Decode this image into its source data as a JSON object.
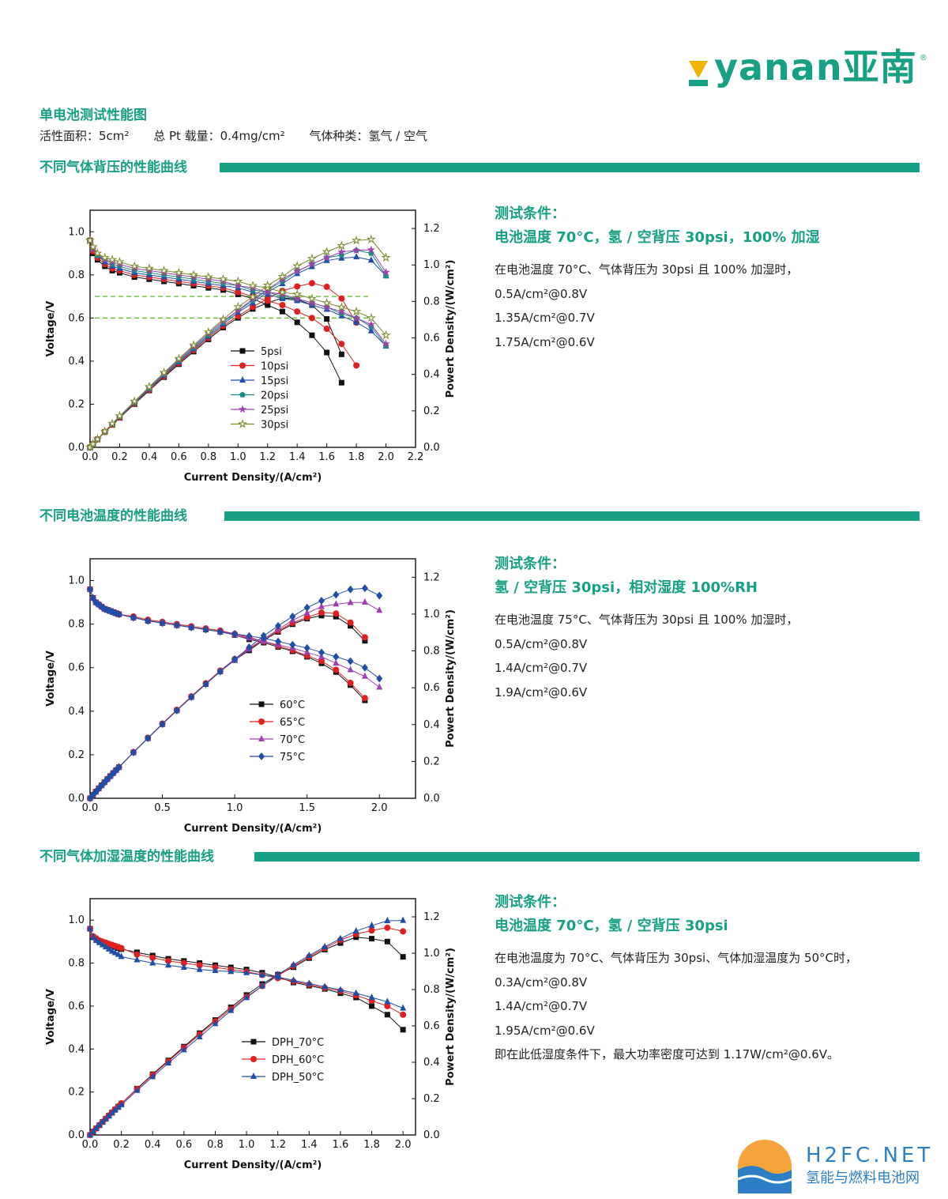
{
  "brand": {
    "logo_text": "yanan亚南",
    "reg": "®",
    "colors": {
      "accent": "#17a083"
    }
  },
  "doc": {
    "title": "单电池测试性能图",
    "specs": [
      "活性面积：5cm²",
      "总 Pt 载量：0.4mg/cm²",
      "气体种类：氢气 / 空气"
    ]
  },
  "sections": [
    {
      "heading": "不同气体背压的性能曲线",
      "cond_title": "测试条件：",
      "cond_sub": "电池温度 70°C，氢 / 空背压 30psi，100% 加湿",
      "lines": [
        "在电池温度 70°C、气体背压为 30psi 且 100% 加湿时，",
        "0.5A/cm²@0.8V",
        "1.35A/cm²@0.7V",
        "1.75A/cm²@0.6V"
      ]
    },
    {
      "heading": "不同电池温度的性能曲线",
      "cond_title": "测试条件：",
      "cond_sub": "氢 / 空背压 30psi，相对湿度 100%RH",
      "lines": [
        "在电池温度 75°C、气体背压为 30psi 且 100% 加湿时，",
        "0.5A/cm²@0.8V",
        "1.4A/cm²@0.7V",
        "1.9A/cm²@0.6V"
      ]
    },
    {
      "heading": "不同气体加湿温度的性能曲线",
      "cond_title": "测试条件：",
      "cond_sub": "电池温度 70°C，氢 / 空背压 30psi",
      "lines": [
        "在电池温度为 70°C、气体背压为 30psi、气体加湿温度为 50°C时，",
        "0.3A/cm²@0.8V",
        "1.4A/cm²@0.7V",
        "1.95A/cm²@0.6V",
        "即在此低湿度条件下，最大功率密度可达到 1.17W/cm²@0.6V。"
      ]
    }
  ],
  "watermark": {
    "name": "H2FC.NET",
    "sub": "氢能与燃料电池网"
  },
  "chart_data": [
    {
      "type": "line",
      "xlabel": "Current Density/(A/cm²)",
      "ylabel": "Voltage/V",
      "y2label": "Powert Density/(W/cm²)",
      "xlim": [
        0,
        2.2
      ],
      "ylim": [
        0,
        1.1
      ],
      "y2lim": [
        0,
        1.3
      ],
      "xticks": [
        "0.0",
        "0.2",
        "0.4",
        "0.6",
        "0.8",
        "1.0",
        "1.2",
        "1.4",
        "1.6",
        "1.8",
        "2.0",
        "2.2"
      ],
      "yticks": [
        "0.0",
        "0.2",
        "0.4",
        "0.6",
        "0.8",
        "1.0"
      ],
      "y2ticks": [
        "0.0",
        "0.2",
        "0.4",
        "0.6",
        "0.8",
        "1.0",
        "1.2"
      ],
      "xtick_values": [
        0,
        0.2,
        0.4,
        0.6,
        0.8,
        1.0,
        1.2,
        1.4,
        1.6,
        1.8,
        2.0,
        2.2
      ],
      "ytick_values": [
        0,
        0.2,
        0.4,
        0.6,
        0.8,
        1.0
      ],
      "y2tick_values": [
        0,
        0.2,
        0.4,
        0.6,
        0.8,
        1.0,
        1.2
      ],
      "hlines": [
        0.7,
        0.6
      ],
      "series": [
        {
          "name": "5psi",
          "color": "#111111",
          "marker": "square",
          "x": [
            0,
            0.02,
            0.05,
            0.1,
            0.15,
            0.2,
            0.3,
            0.4,
            0.5,
            0.6,
            0.7,
            0.8,
            0.9,
            1.0,
            1.1,
            1.2,
            1.3,
            1.4,
            1.5,
            1.6,
            1.7
          ],
          "v": [
            0.96,
            0.9,
            0.87,
            0.84,
            0.82,
            0.81,
            0.79,
            0.78,
            0.77,
            0.76,
            0.75,
            0.74,
            0.73,
            0.71,
            0.69,
            0.66,
            0.63,
            0.58,
            0.52,
            0.44,
            0.3
          ]
        },
        {
          "name": "10psi",
          "color": "#e02020",
          "marker": "circle",
          "x": [
            0,
            0.02,
            0.05,
            0.1,
            0.15,
            0.2,
            0.3,
            0.4,
            0.5,
            0.6,
            0.7,
            0.8,
            0.9,
            1.0,
            1.1,
            1.2,
            1.3,
            1.4,
            1.5,
            1.6,
            1.7,
            1.8
          ],
          "v": [
            0.96,
            0.91,
            0.88,
            0.85,
            0.83,
            0.82,
            0.8,
            0.79,
            0.78,
            0.77,
            0.76,
            0.75,
            0.74,
            0.72,
            0.7,
            0.68,
            0.66,
            0.63,
            0.6,
            0.55,
            0.48,
            0.38
          ]
        },
        {
          "name": "15psi",
          "color": "#1f4ea8",
          "marker": "triangle",
          "x": [
            0,
            0.02,
            0.05,
            0.1,
            0.15,
            0.2,
            0.3,
            0.4,
            0.5,
            0.6,
            0.7,
            0.8,
            0.9,
            1.0,
            1.1,
            1.2,
            1.3,
            1.4,
            1.5,
            1.6,
            1.7,
            1.8,
            1.9,
            2.0
          ],
          "v": [
            0.96,
            0.92,
            0.89,
            0.86,
            0.84,
            0.83,
            0.81,
            0.8,
            0.79,
            0.78,
            0.77,
            0.76,
            0.75,
            0.74,
            0.72,
            0.71,
            0.69,
            0.68,
            0.66,
            0.64,
            0.61,
            0.58,
            0.54,
            0.47
          ]
        },
        {
          "name": "20psi",
          "color": "#1a8a86",
          "marker": "pentagon",
          "x": [
            0,
            0.02,
            0.05,
            0.1,
            0.15,
            0.2,
            0.3,
            0.4,
            0.5,
            0.6,
            0.7,
            0.8,
            0.9,
            1.0,
            1.1,
            1.2,
            1.3,
            1.4,
            1.5,
            1.6,
            1.7,
            1.8,
            1.9,
            2.0
          ],
          "v": [
            0.96,
            0.92,
            0.89,
            0.87,
            0.85,
            0.84,
            0.82,
            0.81,
            0.8,
            0.79,
            0.78,
            0.77,
            0.76,
            0.75,
            0.73,
            0.72,
            0.7,
            0.69,
            0.67,
            0.65,
            0.62,
            0.6,
            0.56,
            0.47
          ]
        },
        {
          "name": "25psi",
          "color": "#a040b0",
          "marker": "star",
          "x": [
            0,
            0.02,
            0.05,
            0.1,
            0.15,
            0.2,
            0.3,
            0.4,
            0.5,
            0.6,
            0.7,
            0.8,
            0.9,
            1.0,
            1.1,
            1.2,
            1.3,
            1.4,
            1.5,
            1.6,
            1.7,
            1.8,
            1.9,
            2.0
          ],
          "v": [
            0.96,
            0.92,
            0.9,
            0.87,
            0.86,
            0.85,
            0.83,
            0.82,
            0.81,
            0.8,
            0.79,
            0.78,
            0.77,
            0.75,
            0.74,
            0.72,
            0.71,
            0.69,
            0.67,
            0.65,
            0.63,
            0.6,
            0.57,
            0.48
          ]
        },
        {
          "name": "30psi",
          "color": "#7a8a2a",
          "marker": "star-open",
          "x": [
            0,
            0.02,
            0.05,
            0.1,
            0.15,
            0.2,
            0.3,
            0.4,
            0.5,
            0.6,
            0.7,
            0.8,
            0.9,
            1.0,
            1.1,
            1.2,
            1.3,
            1.4,
            1.5,
            1.6,
            1.7,
            1.8,
            1.9,
            2.0
          ],
          "v": [
            0.96,
            0.93,
            0.9,
            0.88,
            0.87,
            0.86,
            0.84,
            0.83,
            0.82,
            0.81,
            0.8,
            0.79,
            0.78,
            0.77,
            0.75,
            0.74,
            0.72,
            0.71,
            0.69,
            0.67,
            0.65,
            0.63,
            0.6,
            0.52
          ]
        }
      ]
    },
    {
      "type": "line",
      "xlabel": "Current Density/(A/cm²)",
      "ylabel": "Voltage/V",
      "y2label": "Powert Density/(W/cm²)",
      "xlim": [
        0,
        2.25
      ],
      "ylim": [
        0,
        1.1
      ],
      "y2lim": [
        0,
        1.3
      ],
      "xticks": [
        "0.0",
        "0.5",
        "1.0",
        "1.5",
        "2.0"
      ],
      "yticks": [
        "0.0",
        "0.2",
        "0.4",
        "0.6",
        "0.8",
        "1.0"
      ],
      "y2ticks": [
        "0.0",
        "0.2",
        "0.4",
        "0.6",
        "0.8",
        "1.0",
        "1.2"
      ],
      "xtick_values": [
        0,
        0.5,
        1.0,
        1.5,
        2.0
      ],
      "ytick_values": [
        0,
        0.2,
        0.4,
        0.6,
        0.8,
        1.0
      ],
      "y2tick_values": [
        0,
        0.2,
        0.4,
        0.6,
        0.8,
        1.0,
        1.2
      ],
      "hlines": [],
      "series": [
        {
          "name": "60°C",
          "color": "#111111",
          "marker": "square",
          "x": [
            0,
            0.02,
            0.04,
            0.06,
            0.08,
            0.1,
            0.12,
            0.14,
            0.16,
            0.18,
            0.2,
            0.3,
            0.4,
            0.5,
            0.6,
            0.7,
            0.8,
            0.9,
            1.0,
            1.1,
            1.2,
            1.3,
            1.4,
            1.5,
            1.6,
            1.7,
            1.8,
            1.9
          ],
          "v": [
            0.96,
            0.92,
            0.9,
            0.89,
            0.88,
            0.87,
            0.865,
            0.86,
            0.855,
            0.85,
            0.845,
            0.83,
            0.815,
            0.805,
            0.795,
            0.785,
            0.775,
            0.765,
            0.75,
            0.73,
            0.715,
            0.695,
            0.675,
            0.65,
            0.62,
            0.58,
            0.52,
            0.45
          ]
        },
        {
          "name": "65°C",
          "color": "#e02020",
          "marker": "circle",
          "x": [
            0,
            0.02,
            0.04,
            0.06,
            0.08,
            0.1,
            0.12,
            0.14,
            0.16,
            0.18,
            0.2,
            0.3,
            0.4,
            0.5,
            0.6,
            0.7,
            0.8,
            0.9,
            1.0,
            1.1,
            1.2,
            1.3,
            1.4,
            1.5,
            1.6,
            1.7,
            1.8,
            1.9
          ],
          "v": [
            0.96,
            0.92,
            0.9,
            0.89,
            0.88,
            0.87,
            0.865,
            0.86,
            0.855,
            0.85,
            0.845,
            0.835,
            0.82,
            0.81,
            0.8,
            0.79,
            0.78,
            0.77,
            0.755,
            0.74,
            0.72,
            0.7,
            0.68,
            0.655,
            0.63,
            0.59,
            0.53,
            0.46
          ]
        },
        {
          "name": "70°C",
          "color": "#a040b0",
          "marker": "triangle",
          "x": [
            0,
            0.02,
            0.04,
            0.06,
            0.08,
            0.1,
            0.12,
            0.14,
            0.16,
            0.18,
            0.2,
            0.3,
            0.4,
            0.5,
            0.6,
            0.7,
            0.8,
            0.9,
            1.0,
            1.1,
            1.2,
            1.3,
            1.4,
            1.5,
            1.6,
            1.7,
            1.8,
            1.9,
            2.0
          ],
          "v": [
            0.96,
            0.92,
            0.9,
            0.89,
            0.88,
            0.87,
            0.865,
            0.86,
            0.855,
            0.85,
            0.845,
            0.83,
            0.815,
            0.805,
            0.795,
            0.785,
            0.775,
            0.765,
            0.75,
            0.735,
            0.72,
            0.705,
            0.69,
            0.67,
            0.65,
            0.62,
            0.59,
            0.56,
            0.51
          ]
        },
        {
          "name": "75°C",
          "color": "#1f4ea8",
          "marker": "diamond",
          "x": [
            0,
            0.02,
            0.04,
            0.06,
            0.08,
            0.1,
            0.12,
            0.14,
            0.16,
            0.18,
            0.2,
            0.3,
            0.4,
            0.5,
            0.6,
            0.7,
            0.8,
            0.9,
            1.0,
            1.1,
            1.2,
            1.3,
            1.4,
            1.5,
            1.6,
            1.7,
            1.8,
            1.9,
            2.0
          ],
          "v": [
            0.96,
            0.92,
            0.9,
            0.89,
            0.88,
            0.87,
            0.865,
            0.86,
            0.855,
            0.85,
            0.845,
            0.83,
            0.815,
            0.805,
            0.795,
            0.785,
            0.775,
            0.765,
            0.755,
            0.745,
            0.735,
            0.72,
            0.705,
            0.69,
            0.67,
            0.65,
            0.63,
            0.6,
            0.55
          ]
        }
      ]
    },
    {
      "type": "line",
      "xlabel": "Current Density/(A/cm²)",
      "ylabel": "Voltage/V",
      "y2label": "Powert Density/(W/cm²)",
      "xlim": [
        0,
        2.08
      ],
      "ylim": [
        0,
        1.1
      ],
      "y2lim": [
        0,
        1.3
      ],
      "xticks": [
        "0.0",
        "0.2",
        "0.4",
        "0.6",
        "0.8",
        "1.0",
        "1.2",
        "1.4",
        "1.6",
        "1.8",
        "2.0"
      ],
      "yticks": [
        "0.0",
        "0.2",
        "0.4",
        "0.6",
        "0.8",
        "1.0"
      ],
      "y2ticks": [
        "0.0",
        "0.2",
        "0.4",
        "0.6",
        "0.8",
        "1.0",
        "1.2"
      ],
      "xtick_values": [
        0,
        0.2,
        0.4,
        0.6,
        0.8,
        1.0,
        1.2,
        1.4,
        1.6,
        1.8,
        2.0
      ],
      "ytick_values": [
        0,
        0.2,
        0.4,
        0.6,
        0.8,
        1.0
      ],
      "y2tick_values": [
        0,
        0.2,
        0.4,
        0.6,
        0.8,
        1.0,
        1.2
      ],
      "hlines": [],
      "series": [
        {
          "name": "DPH_70°C",
          "color": "#111111",
          "marker": "square",
          "x": [
            0,
            0.02,
            0.04,
            0.06,
            0.08,
            0.1,
            0.12,
            0.14,
            0.16,
            0.18,
            0.2,
            0.3,
            0.4,
            0.5,
            0.6,
            0.7,
            0.8,
            0.9,
            1.0,
            1.1,
            1.2,
            1.3,
            1.4,
            1.5,
            1.6,
            1.7,
            1.8,
            1.9,
            2.0
          ],
          "v": [
            0.96,
            0.92,
            0.91,
            0.9,
            0.895,
            0.89,
            0.885,
            0.88,
            0.875,
            0.87,
            0.865,
            0.85,
            0.835,
            0.82,
            0.81,
            0.8,
            0.79,
            0.78,
            0.77,
            0.755,
            0.735,
            0.71,
            0.695,
            0.68,
            0.66,
            0.64,
            0.6,
            0.56,
            0.49
          ]
        },
        {
          "name": "DPH_60°C",
          "color": "#e02020",
          "marker": "circle",
          "x": [
            0,
            0.02,
            0.04,
            0.06,
            0.08,
            0.1,
            0.12,
            0.14,
            0.16,
            0.18,
            0.2,
            0.3,
            0.4,
            0.5,
            0.6,
            0.7,
            0.8,
            0.9,
            1.0,
            1.1,
            1.2,
            1.3,
            1.4,
            1.5,
            1.6,
            1.7,
            1.8,
            1.9,
            2.0
          ],
          "v": [
            0.96,
            0.925,
            0.915,
            0.905,
            0.9,
            0.895,
            0.89,
            0.885,
            0.88,
            0.875,
            0.87,
            0.84,
            0.825,
            0.81,
            0.8,
            0.79,
            0.78,
            0.77,
            0.76,
            0.745,
            0.73,
            0.715,
            0.7,
            0.685,
            0.67,
            0.65,
            0.625,
            0.6,
            0.56
          ]
        },
        {
          "name": "DPH_50°C",
          "color": "#1f4ea8",
          "marker": "triangle",
          "x": [
            0,
            0.02,
            0.04,
            0.06,
            0.08,
            0.1,
            0.12,
            0.14,
            0.16,
            0.18,
            0.2,
            0.3,
            0.4,
            0.5,
            0.6,
            0.7,
            0.8,
            0.9,
            1.0,
            1.1,
            1.2,
            1.3,
            1.4,
            1.5,
            1.6,
            1.7,
            1.8,
            1.9,
            2.0
          ],
          "v": [
            0.96,
            0.92,
            0.905,
            0.895,
            0.885,
            0.875,
            0.865,
            0.855,
            0.848,
            0.84,
            0.83,
            0.815,
            0.8,
            0.79,
            0.78,
            0.77,
            0.765,
            0.76,
            0.755,
            0.745,
            0.735,
            0.72,
            0.705,
            0.69,
            0.675,
            0.66,
            0.64,
            0.62,
            0.59
          ]
        }
      ]
    }
  ]
}
